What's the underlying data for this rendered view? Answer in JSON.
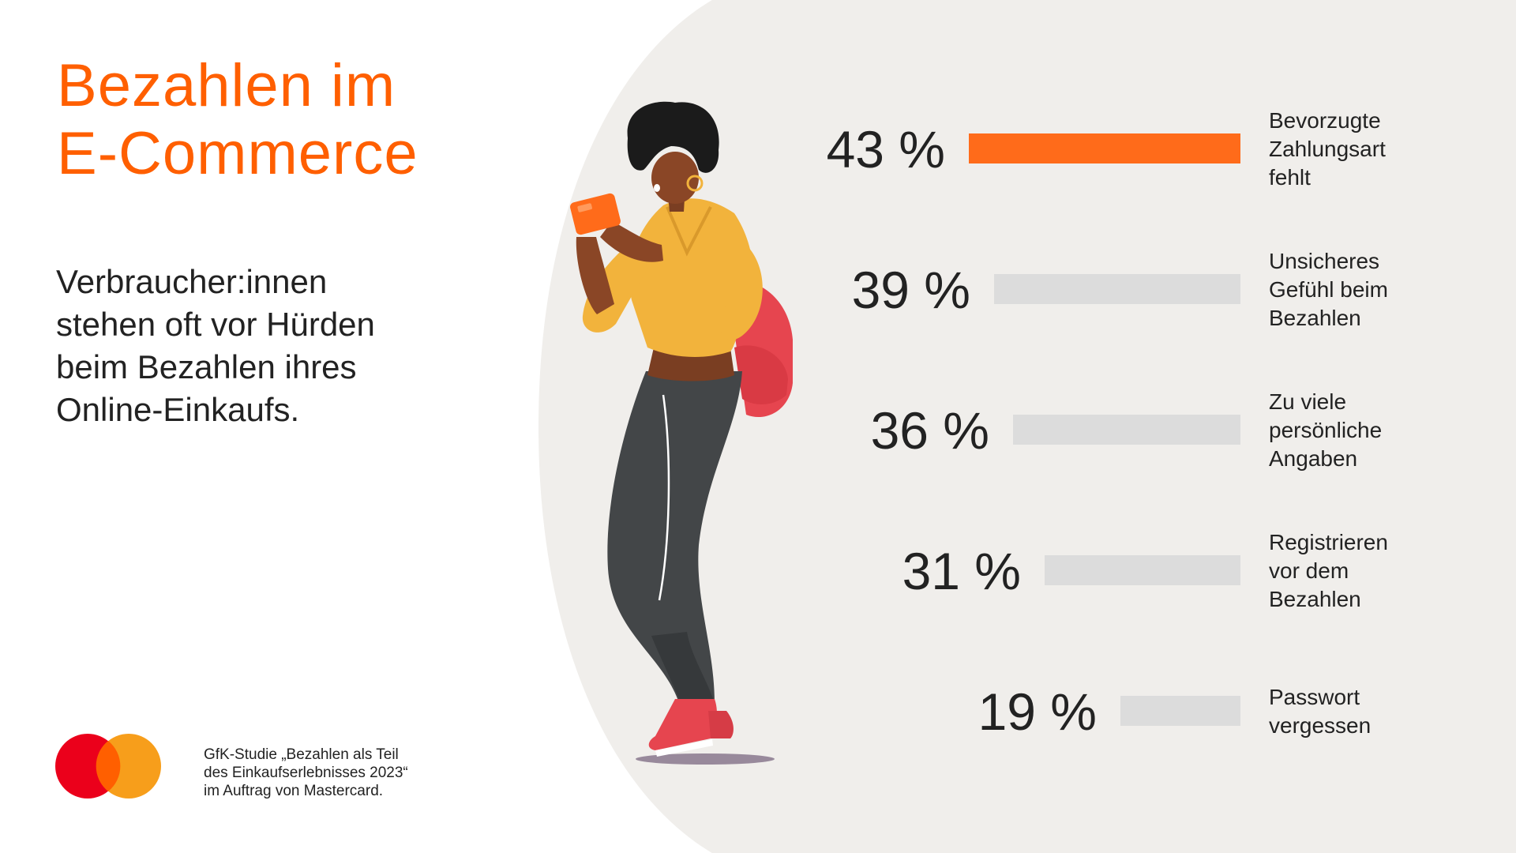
{
  "title_lines": [
    "Bezahlen im",
    "E-Commerce"
  ],
  "subtitle_lines": [
    "Verbraucher:innen",
    "stehen oft vor Hürden",
    "beim Bezahlen ihres",
    "Online-Einkaufs."
  ],
  "source_lines": [
    "GfK-Studie „Bezahlen als Teil",
    "des Einkaufserlebnisses 2023“",
    "im Auftrag von Mastercard."
  ],
  "colors": {
    "accent": "#ff5f00",
    "bar_highlight": "#ff6b1a",
    "bar_default": "#dcdcdc",
    "panel_background": "#f0eeeb",
    "logo_red": "#eb001b",
    "logo_yellow": "#f79e1b"
  },
  "logo": {
    "icon": "mastercard-logo"
  },
  "illustration": {
    "icon": "woman-with-smartphone-illustration"
  },
  "chart_data": {
    "type": "bar",
    "orientation": "horizontal",
    "unit": "%",
    "xlim": [
      0,
      43
    ],
    "highlight_index": 0,
    "categories": [
      [
        "Bevorzugte",
        "Zahlungsart",
        "fehlt"
      ],
      [
        "Unsicheres",
        "Gefühl beim",
        "Bezahlen"
      ],
      [
        "Zu viele",
        "persönliche",
        "Angaben"
      ],
      [
        "Registrieren",
        "vor dem",
        "Bezahlen"
      ],
      [
        "Passwort",
        "vergessen"
      ]
    ],
    "values": [
      43,
      39,
      36,
      31,
      19
    ],
    "value_labels": [
      "43 %",
      "39 %",
      "36 %",
      "31 %",
      "19 %"
    ]
  }
}
